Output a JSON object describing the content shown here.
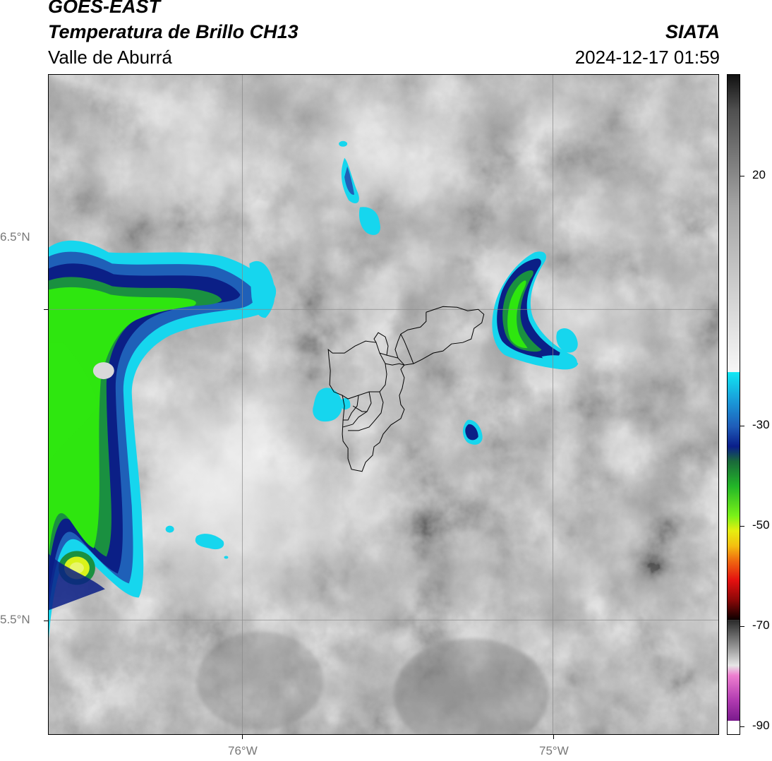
{
  "header": {
    "satellite": "GOES-EAST",
    "product": "Temperatura de Brillo CH13",
    "region": "Valle de Aburrá",
    "organization": "SIATA",
    "datetime": "2024-12-17 01:59"
  },
  "map": {
    "lat_labels": [
      "6.5°N",
      "5.5°N"
    ],
    "lon_labels": [
      "76°W",
      "75°W"
    ],
    "colors": {
      "warm_gray": "#9a9a9a",
      "cold_cyan": "#16d6ee",
      "cold_blue": "#1f60b8",
      "cold_navy": "#0b1f86",
      "very_cold_green": "#2ee60f",
      "very_cold_yellow": "#d9f21a",
      "boundary_line": "#000000"
    }
  },
  "colorbar": {
    "tick_labels": [
      "20",
      "-30",
      "-50",
      "-70",
      "-90"
    ]
  }
}
